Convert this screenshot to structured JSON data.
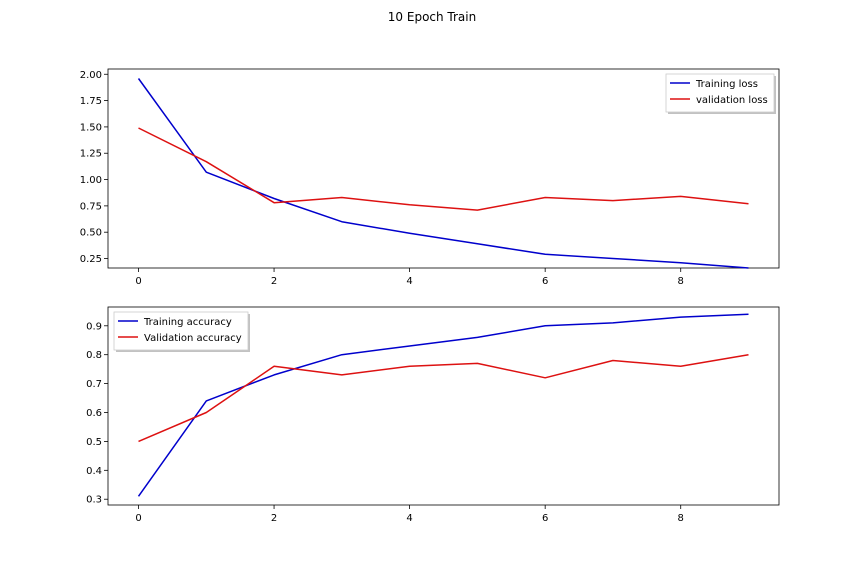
{
  "figure": {
    "suptitle": "10 Epoch Train"
  },
  "chart_data": [
    {
      "type": "line",
      "title": "",
      "xlabel": "",
      "ylabel": "",
      "x": [
        0,
        1,
        2,
        3,
        4,
        5,
        6,
        7,
        8,
        9
      ],
      "xlim": [
        -0.45,
        9.45
      ],
      "ylim": [
        0.16,
        2.05
      ],
      "xticks": [
        0,
        2,
        4,
        6,
        8
      ],
      "xtick_labels": [
        "0",
        "2",
        "4",
        "6",
        "8"
      ],
      "yticks": [
        0.25,
        0.5,
        0.75,
        1.0,
        1.25,
        1.5,
        1.75,
        2.0
      ],
      "ytick_labels": [
        "0.25",
        "0.50",
        "0.75",
        "1.00",
        "1.25",
        "1.50",
        "1.75",
        "2.00"
      ],
      "grid": false,
      "legend_position": "upper-right",
      "series": [
        {
          "name": "Training loss",
          "color": "#0000cc",
          "values": [
            1.96,
            1.07,
            0.82,
            0.6,
            0.49,
            0.39,
            0.29,
            0.25,
            0.21,
            0.16
          ]
        },
        {
          "name": "validation loss",
          "color": "#dd1111",
          "values": [
            1.49,
            1.17,
            0.78,
            0.83,
            0.76,
            0.71,
            0.83,
            0.8,
            0.84,
            0.77
          ]
        }
      ]
    },
    {
      "type": "line",
      "title": "",
      "xlabel": "",
      "ylabel": "",
      "x": [
        0,
        1,
        2,
        3,
        4,
        5,
        6,
        7,
        8,
        9
      ],
      "xlim": [
        -0.45,
        9.45
      ],
      "ylim": [
        0.28,
        0.965
      ],
      "xticks": [
        0,
        2,
        4,
        6,
        8
      ],
      "xtick_labels": [
        "0",
        "2",
        "4",
        "6",
        "8"
      ],
      "yticks": [
        0.3,
        0.4,
        0.5,
        0.6,
        0.7,
        0.8,
        0.9
      ],
      "ytick_labels": [
        "0.3",
        "0.4",
        "0.5",
        "0.6",
        "0.7",
        "0.8",
        "0.9"
      ],
      "grid": false,
      "legend_position": "upper-left",
      "series": [
        {
          "name": "Training accuracy",
          "color": "#0000cc",
          "values": [
            0.31,
            0.64,
            0.73,
            0.8,
            0.83,
            0.86,
            0.9,
            0.91,
            0.93,
            0.94
          ]
        },
        {
          "name": "Validation accuracy",
          "color": "#dd1111",
          "values": [
            0.5,
            0.6,
            0.76,
            0.73,
            0.76,
            0.77,
            0.72,
            0.78,
            0.76,
            0.8
          ]
        }
      ]
    }
  ]
}
